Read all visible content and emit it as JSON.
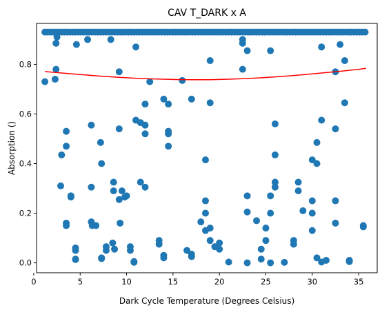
{
  "chart_data": {
    "type": "scatter",
    "title": "CAV T_DARK x A",
    "xlabel": "Dark Cycle Temperature (Degrees Celsius)",
    "ylabel": "Absorption ()",
    "xlim": [
      0.3,
      37.0
    ],
    "ylim": [
      -0.04,
      0.965
    ],
    "x_ticks": [
      0,
      5,
      10,
      15,
      20,
      25,
      30,
      35
    ],
    "x_tick_labels": [
      "0",
      "5",
      "10",
      "15",
      "20",
      "25",
      "30",
      "35"
    ],
    "y_ticks": [
      0.0,
      0.2,
      0.4,
      0.6,
      0.8
    ],
    "y_tick_labels": [
      "0.0",
      "0.2",
      "0.4",
      "0.6",
      "0.8"
    ],
    "grid": false,
    "colors": {
      "points": "#1f77b4",
      "fit": "#ff0000"
    },
    "scatter_points": [
      [
        1.2,
        0.73
      ],
      [
        2.3,
        0.74
      ],
      [
        2.4,
        0.78
      ],
      [
        2.4,
        0.885
      ],
      [
        2.5,
        0.91
      ],
      [
        2.9,
        0.31
      ],
      [
        3.0,
        0.435
      ],
      [
        3.5,
        0.53
      ],
      [
        3.5,
        0.47
      ],
      [
        3.5,
        0.16
      ],
      [
        3.5,
        0.15
      ],
      [
        4.0,
        0.27
      ],
      [
        4.0,
        0.265
      ],
      [
        4.5,
        0.05
      ],
      [
        4.5,
        0.06
      ],
      [
        4.5,
        0.015
      ],
      [
        4.5,
        0.013
      ],
      [
        4.6,
        0.88
      ],
      [
        5.8,
        0.9
      ],
      [
        6.2,
        0.555
      ],
      [
        6.2,
        0.305
      ],
      [
        6.2,
        0.165
      ],
      [
        6.3,
        0.15
      ],
      [
        6.7,
        0.15
      ],
      [
        7.2,
        0.485
      ],
      [
        7.3,
        0.4
      ],
      [
        7.3,
        0.02
      ],
      [
        7.3,
        0.017
      ],
      [
        7.8,
        0.065
      ],
      [
        7.8,
        0.05
      ],
      [
        8.3,
        0.9
      ],
      [
        8.5,
        0.08
      ],
      [
        8.6,
        0.325
      ],
      [
        8.6,
        0.29
      ],
      [
        8.7,
        0.055
      ],
      [
        9.2,
        0.54
      ],
      [
        9.2,
        0.77
      ],
      [
        9.2,
        0.255
      ],
      [
        9.3,
        0.16
      ],
      [
        9.5,
        0.29
      ],
      [
        9.8,
        0.265
      ],
      [
        10.0,
        0.27
      ],
      [
        10.4,
        0.065
      ],
      [
        10.4,
        0.05
      ],
      [
        10.8,
        0.005
      ],
      [
        10.8,
        0.002
      ],
      [
        11.0,
        0.575
      ],
      [
        11.0,
        0.87
      ],
      [
        11.5,
        0.565
      ],
      [
        11.5,
        0.325
      ],
      [
        12.0,
        0.555
      ],
      [
        12.0,
        0.52
      ],
      [
        12.0,
        0.64
      ],
      [
        12.0,
        0.305
      ],
      [
        12.5,
        0.73
      ],
      [
        13.5,
        0.09
      ],
      [
        13.5,
        0.075
      ],
      [
        14.0,
        0.66
      ],
      [
        14.0,
        0.03
      ],
      [
        14.0,
        0.02
      ],
      [
        14.5,
        0.53
      ],
      [
        14.5,
        0.52
      ],
      [
        14.5,
        0.47
      ],
      [
        14.5,
        0.64
      ],
      [
        16.0,
        0.735
      ],
      [
        16.5,
        0.05
      ],
      [
        17.0,
        0.66
      ],
      [
        17.0,
        0.035
      ],
      [
        17.0,
        0.025
      ],
      [
        18.0,
        0.165
      ],
      [
        18.5,
        0.415
      ],
      [
        18.5,
        0.25
      ],
      [
        18.5,
        0.2
      ],
      [
        18.5,
        0.13
      ],
      [
        19.0,
        0.815
      ],
      [
        19.0,
        0.645
      ],
      [
        19.0,
        0.14
      ],
      [
        19.0,
        0.09
      ],
      [
        19.5,
        0.065
      ],
      [
        20.0,
        0.08
      ],
      [
        20.0,
        0.055
      ],
      [
        21.0,
        0.003
      ],
      [
        22.5,
        0.885
      ],
      [
        22.5,
        0.9
      ],
      [
        22.5,
        0.78
      ],
      [
        23.0,
        0.855
      ],
      [
        23.0,
        0.27
      ],
      [
        23.0,
        0.205
      ],
      [
        23.0,
        0.0
      ],
      [
        24.0,
        0.17
      ],
      [
        24.5,
        0.055
      ],
      [
        24.5,
        0.015
      ],
      [
        25.0,
        0.14
      ],
      [
        25.0,
        0.09
      ],
      [
        25.5,
        0.855
      ],
      [
        25.5,
        0.27
      ],
      [
        25.5,
        0.2
      ],
      [
        25.5,
        0.0
      ],
      [
        26.0,
        0.56
      ],
      [
        26.0,
        0.435
      ],
      [
        26.0,
        0.325
      ],
      [
        26.0,
        0.305
      ],
      [
        27.0,
        0.002
      ],
      [
        28.0,
        0.09
      ],
      [
        28.0,
        0.075
      ],
      [
        28.5,
        0.325
      ],
      [
        28.5,
        0.29
      ],
      [
        29.0,
        0.21
      ],
      [
        30.0,
        0.415
      ],
      [
        30.0,
        0.25
      ],
      [
        30.0,
        0.2
      ],
      [
        30.0,
        0.13
      ],
      [
        30.5,
        0.485
      ],
      [
        30.5,
        0.4
      ],
      [
        30.5,
        0.02
      ],
      [
        31.0,
        0.87
      ],
      [
        31.0,
        0.575
      ],
      [
        31.0,
        0.003
      ],
      [
        31.5,
        0.01
      ],
      [
        32.5,
        0.77
      ],
      [
        32.5,
        0.54
      ],
      [
        32.5,
        0.25
      ],
      [
        32.5,
        0.16
      ],
      [
        33.0,
        0.88
      ],
      [
        33.5,
        0.815
      ],
      [
        33.5,
        0.645
      ],
      [
        34.0,
        0.01
      ],
      [
        34.0,
        0.005
      ],
      [
        35.5,
        0.145
      ],
      [
        35.5,
        0.15
      ]
    ],
    "top_band": {
      "y": 0.93,
      "x_start": 1.2,
      "x_end": 35.8,
      "x_step": 0.3
    },
    "fit_curve": {
      "type": "quadratic",
      "x": [
        1.2,
        3.0,
        5.0,
        7.0,
        9.0,
        11.0,
        13.0,
        15.0,
        17.0,
        19.0,
        21.0,
        23.0,
        25.0,
        27.0,
        29.0,
        31.0,
        33.0,
        35.0,
        35.8
      ],
      "y": [
        0.771,
        0.765,
        0.759,
        0.753,
        0.748,
        0.744,
        0.741,
        0.739,
        0.738,
        0.738,
        0.74,
        0.743,
        0.747,
        0.752,
        0.758,
        0.765,
        0.772,
        0.78,
        0.784
      ]
    }
  }
}
